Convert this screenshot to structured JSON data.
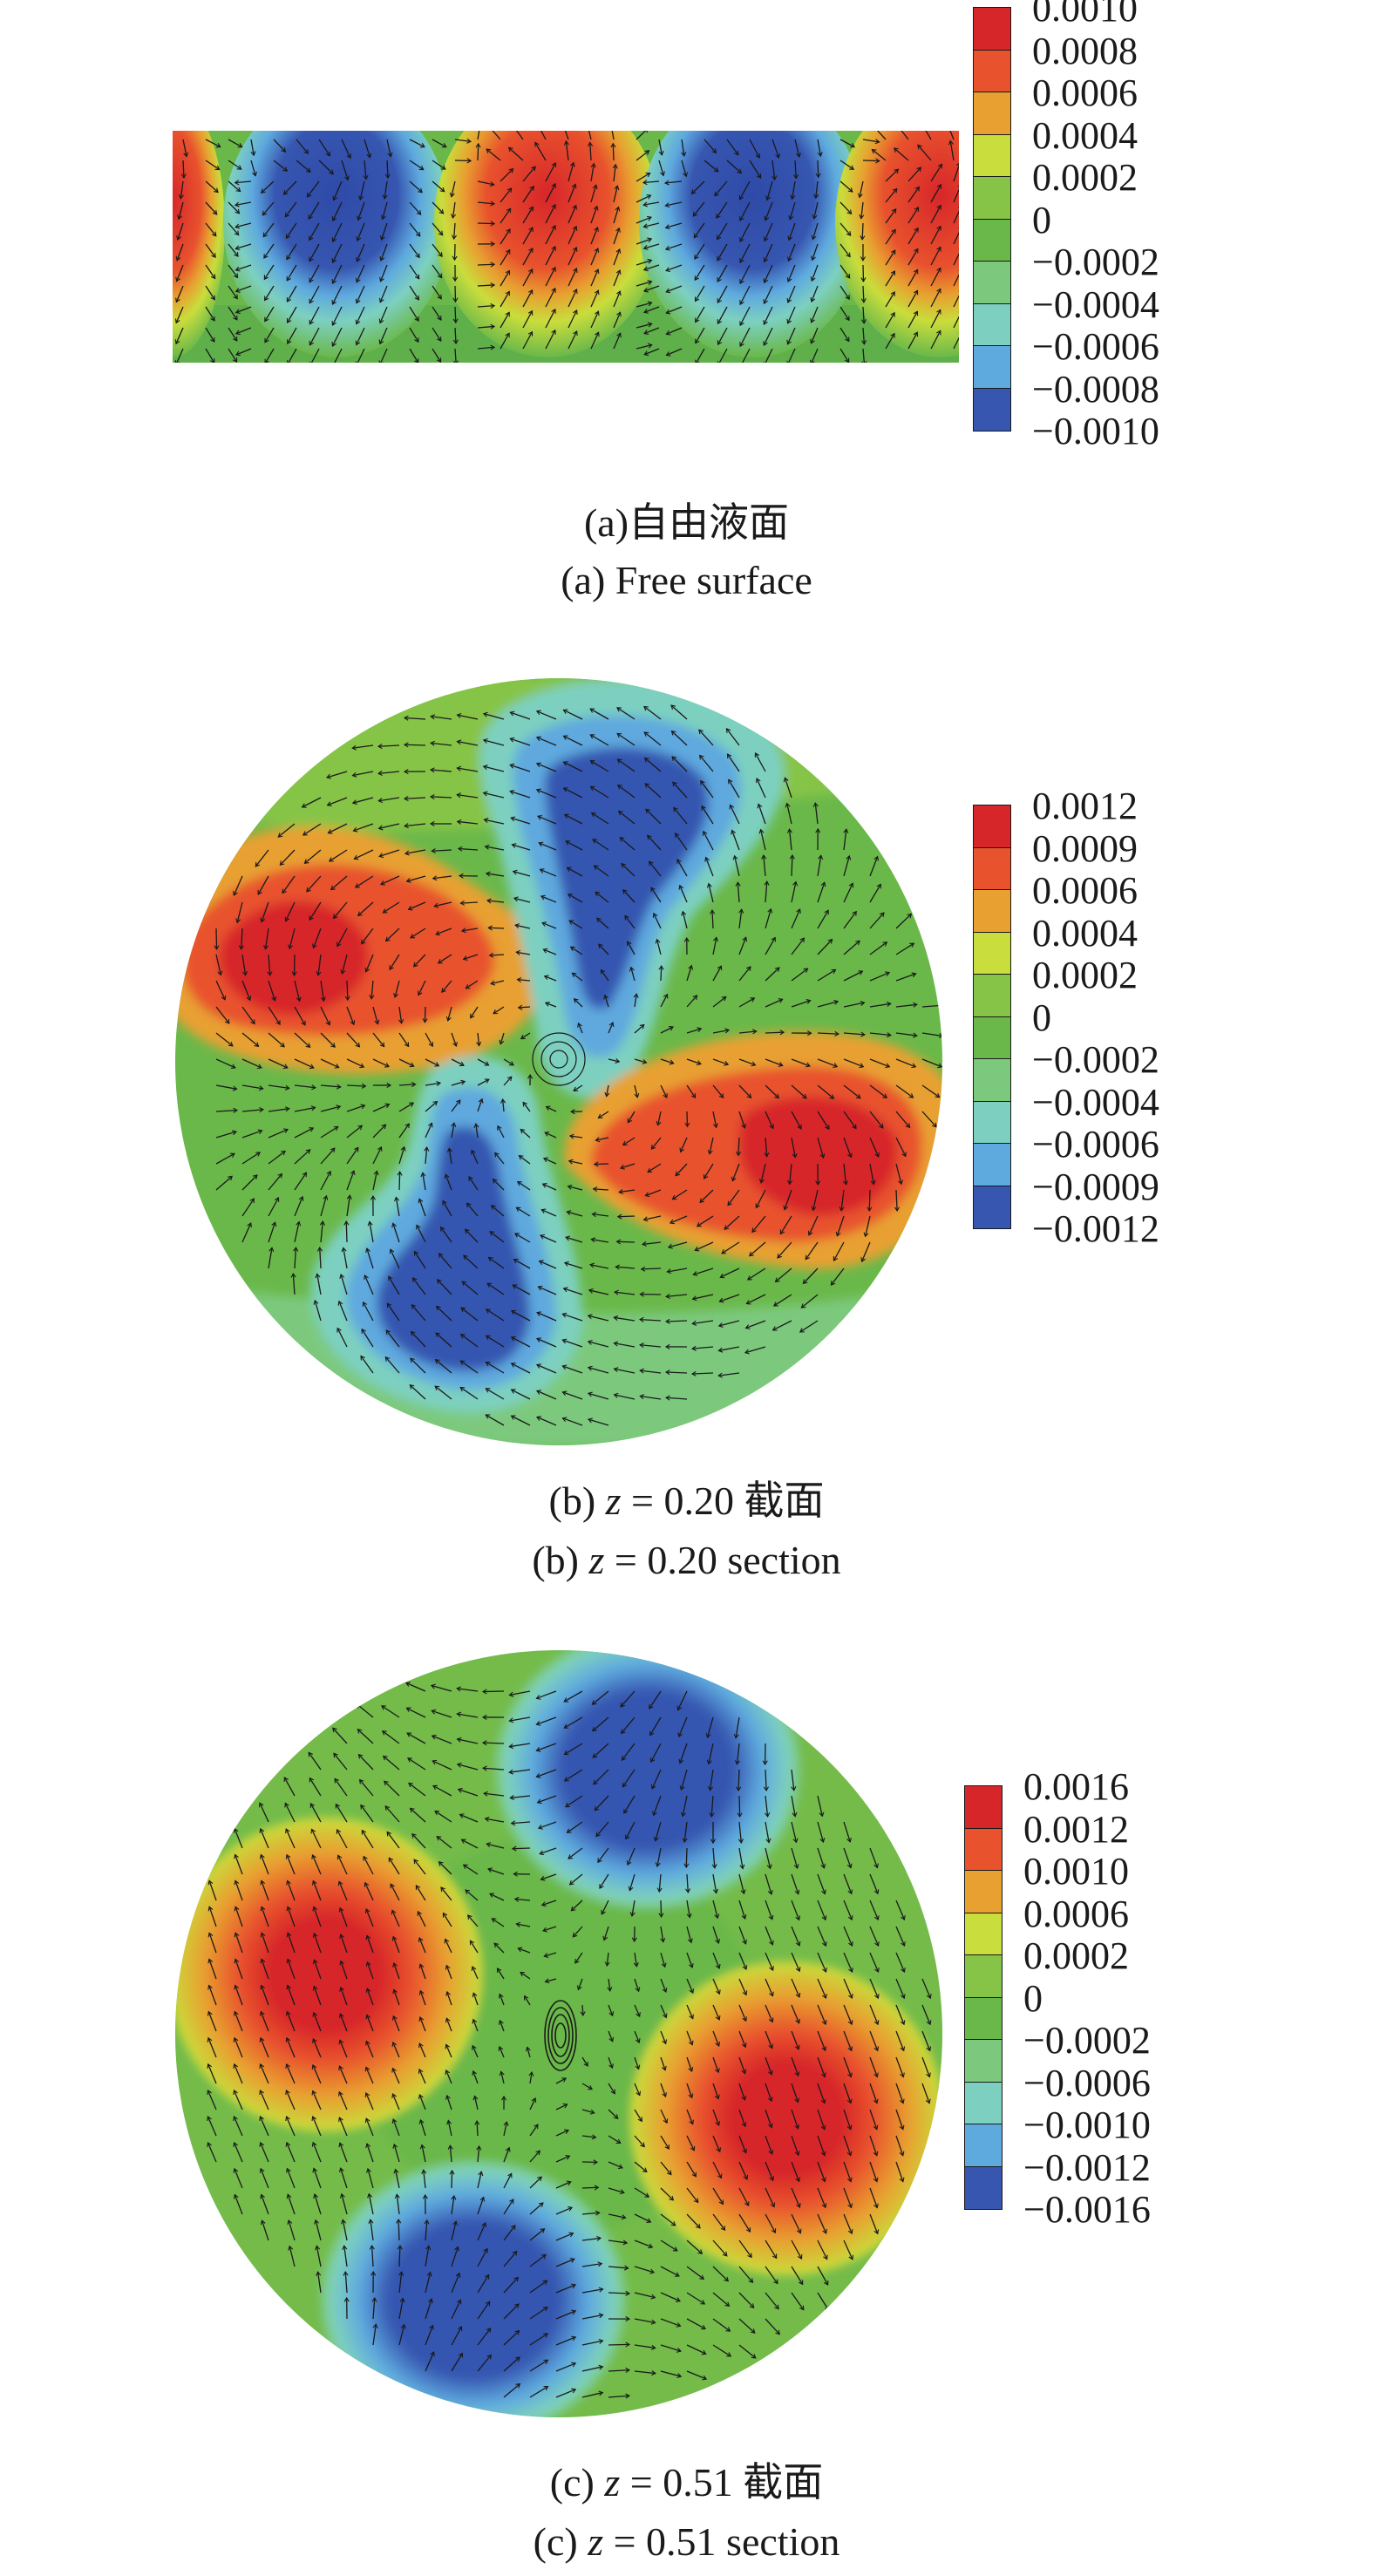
{
  "panels": [
    {
      "id": "a",
      "caption_cn": "(a)自由液面",
      "caption_en": "(a) Free surface",
      "colorbar": {
        "colors": [
          "#d7262a",
          "#e8522d",
          "#e8a030",
          "#c9dd3c",
          "#86c447",
          "#6ab84a",
          "#7cc97e",
          "#7dd0c0",
          "#5ea9de",
          "#3656b0"
        ],
        "labels": [
          "0.0010",
          "0.0008",
          "0.0006",
          "0.0004",
          "0.0002",
          "0",
          "−0.0002",
          "−0.0004",
          "−0.0006",
          "−0.0008",
          "−0.0010"
        ]
      }
    },
    {
      "id": "b",
      "caption_cn_prefix": "(b) ",
      "caption_var": "z",
      "caption_cn_suffix": " = 0.20 截面",
      "caption_en_prefix": "(b) ",
      "caption_en_suffix": " = 0.20 section",
      "colorbar": {
        "colors": [
          "#d7262a",
          "#e8522d",
          "#e8a030",
          "#c9dd3c",
          "#86c447",
          "#6ab84a",
          "#7cc97e",
          "#7dd0c0",
          "#5ea9de",
          "#3656b0"
        ],
        "labels": [
          "0.0012",
          "0.0009",
          "0.0006",
          "0.0004",
          "0.0002",
          "0",
          "−0.0002",
          "−0.0004",
          "−0.0006",
          "−0.0009",
          "−0.0012"
        ]
      }
    },
    {
      "id": "c",
      "caption_cn_prefix": "(c) ",
      "caption_var": "z",
      "caption_cn_suffix": " = 0.51 截面",
      "caption_en_prefix": "(c) ",
      "caption_en_suffix": " = 0.51 section",
      "colorbar": {
        "colors": [
          "#d7262a",
          "#e8522d",
          "#e8a030",
          "#c9dd3c",
          "#86c447",
          "#6ab84a",
          "#7cc97e",
          "#7dd0c0",
          "#5ea9de",
          "#3656b0"
        ],
        "labels": [
          "0.0016",
          "0.0012",
          "0.0010",
          "0.0006",
          "0.0002",
          "0",
          "−0.0002",
          "−0.0006",
          "−0.0010",
          "−0.0012",
          "−0.0016"
        ]
      }
    }
  ]
}
